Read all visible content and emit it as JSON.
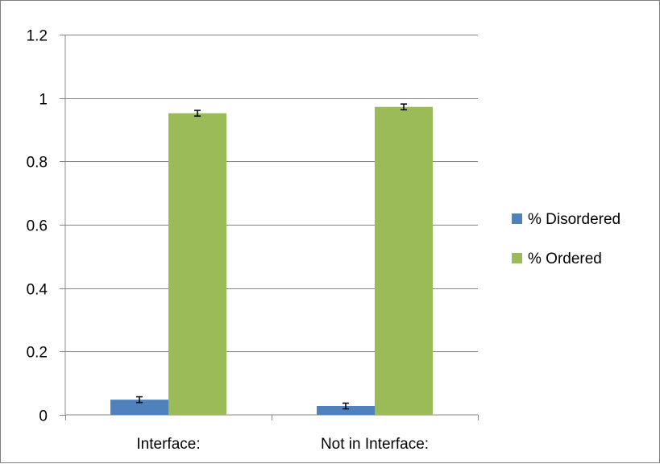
{
  "chart_data": {
    "type": "bar",
    "title": "",
    "xlabel": "",
    "ylabel": "",
    "categories": [
      "Interface:",
      "Not in Interface:"
    ],
    "series": [
      {
        "name": "% Disordered",
        "color": "#4f81bd",
        "values": [
          0.048,
          0.028
        ],
        "errors": [
          0.009,
          0.009
        ]
      },
      {
        "name": "% Ordered",
        "color": "#9bbb59",
        "values": [
          0.952,
          0.972
        ],
        "errors": [
          0.009,
          0.009
        ]
      }
    ],
    "ylim": [
      0,
      1.2
    ],
    "yticks": [
      0,
      0.2,
      0.4,
      0.6,
      0.8,
      1,
      1.2
    ],
    "ytick_labels": [
      "0",
      "0.2",
      "0.4",
      "0.6",
      "0.8",
      "1",
      "1.2"
    ],
    "grid": true,
    "legend_position": "right"
  }
}
